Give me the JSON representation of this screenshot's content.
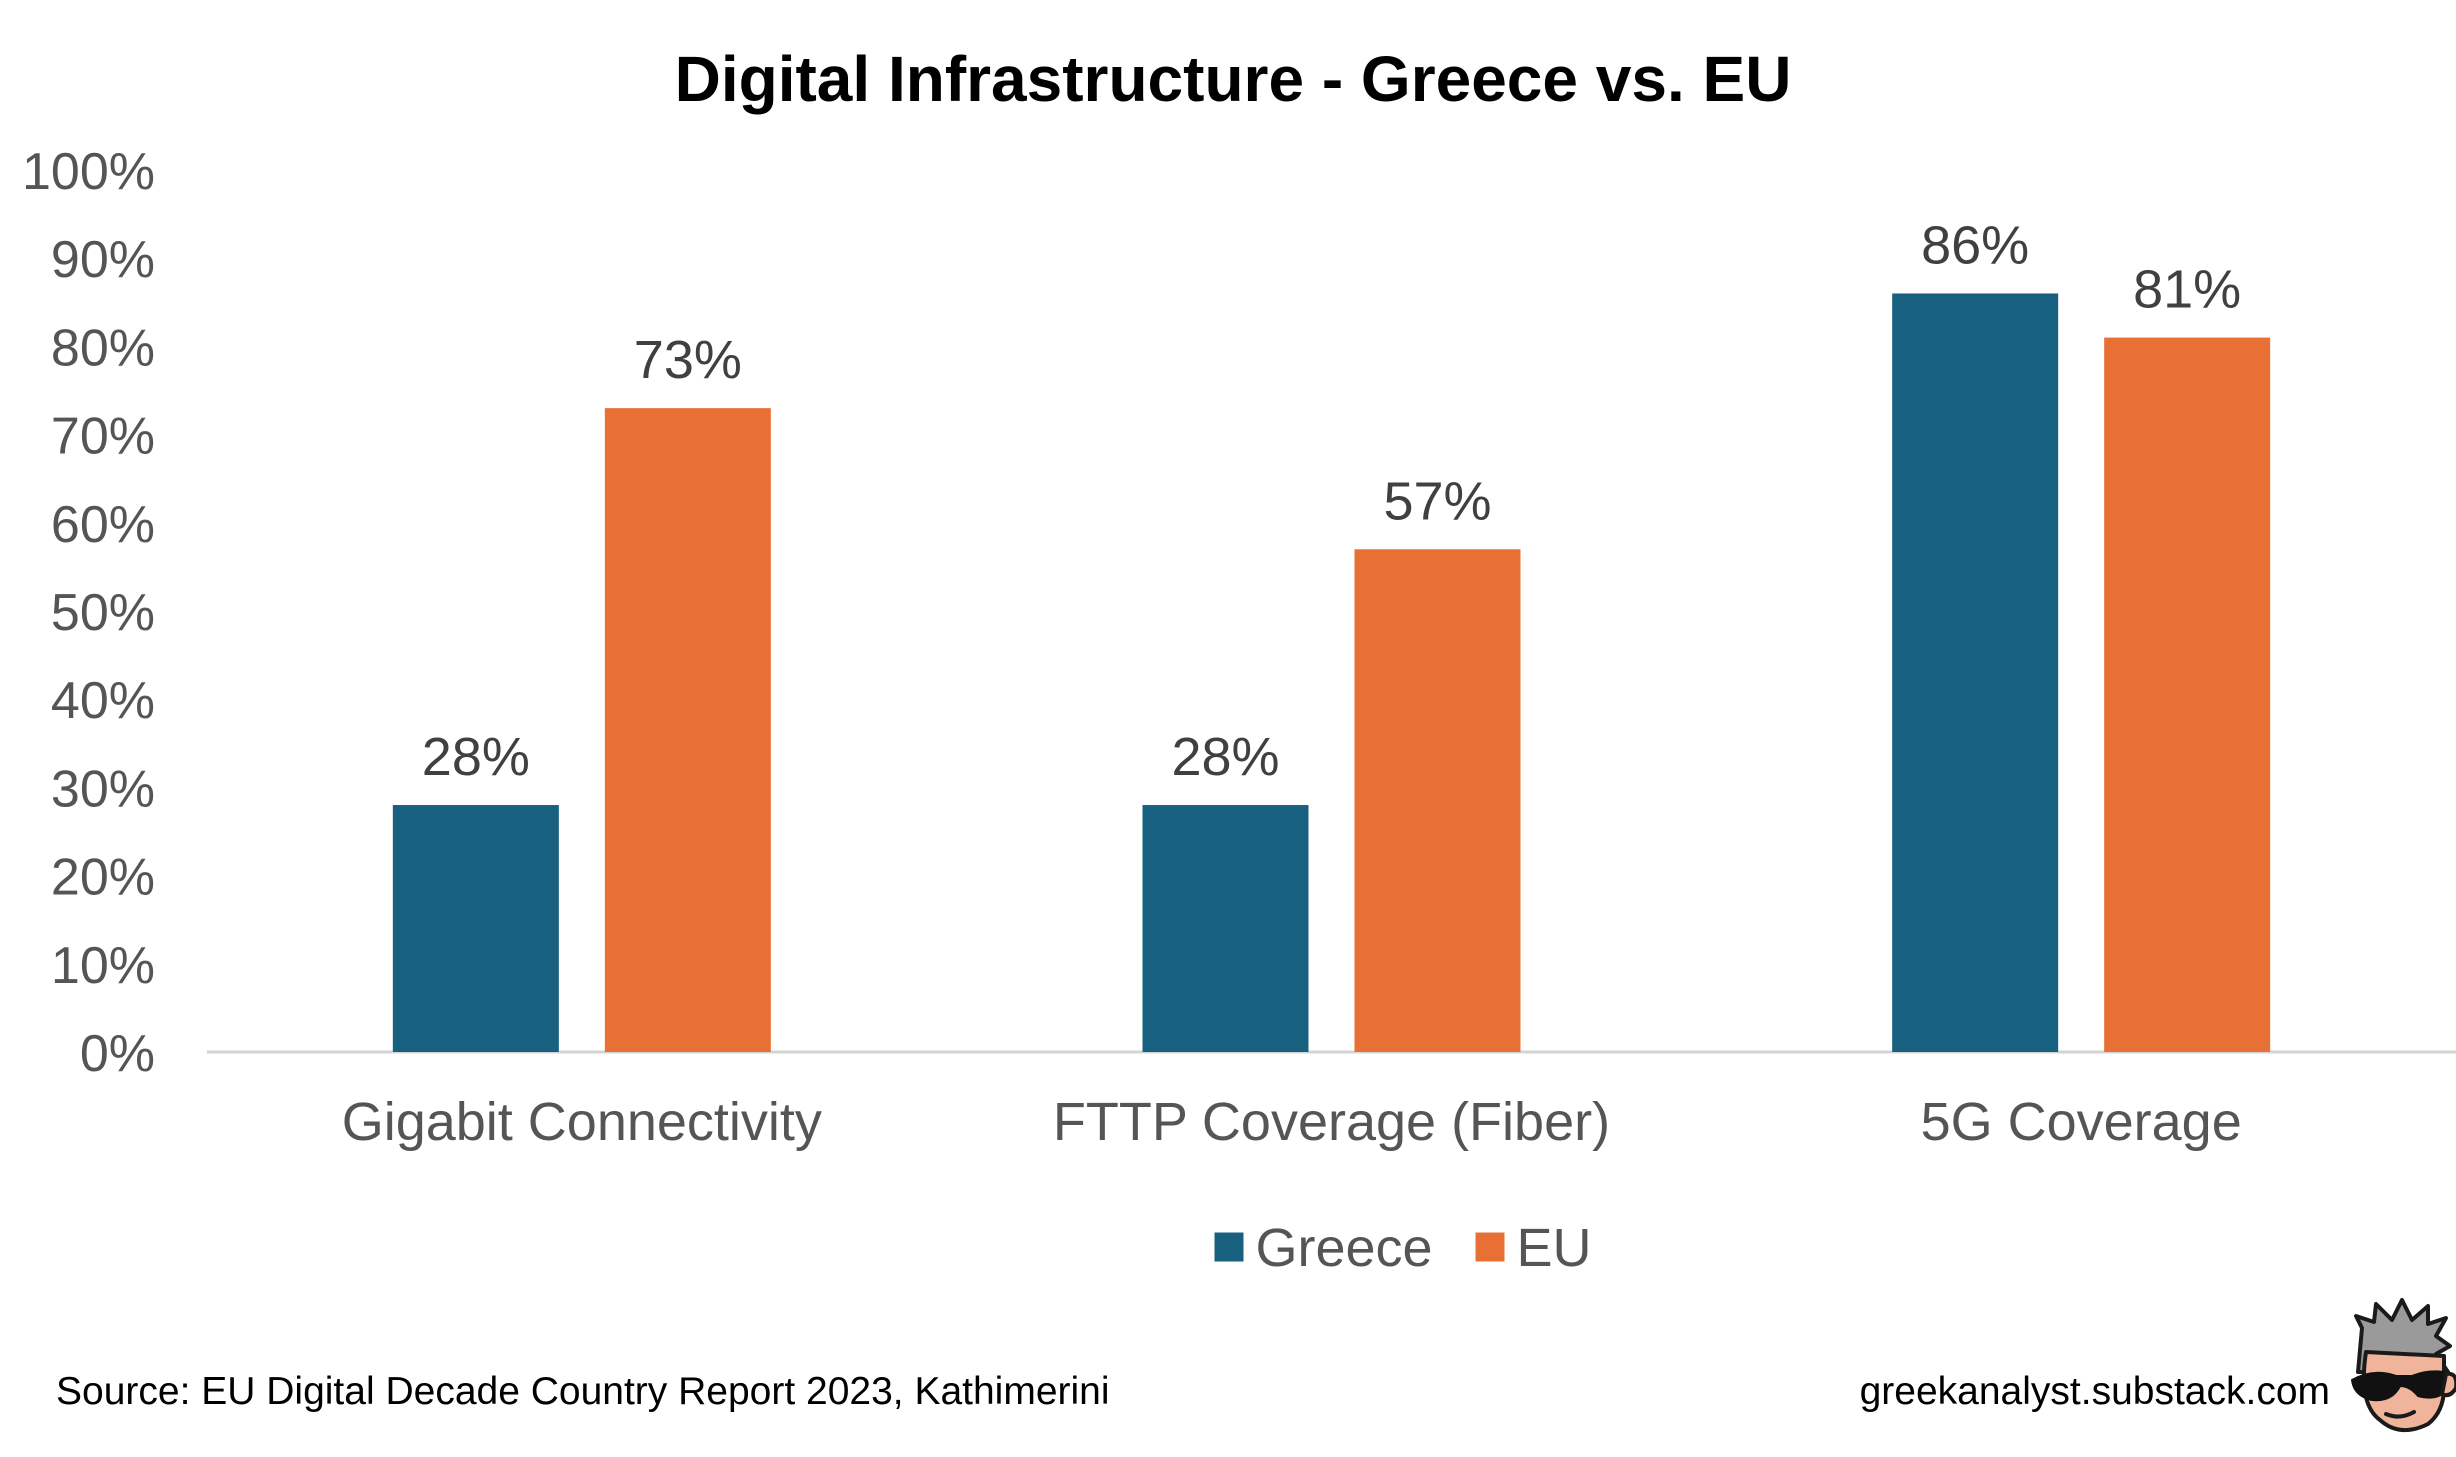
{
  "chart_data": {
    "type": "bar",
    "title": "Digital Infrastructure - Greece vs. EU",
    "categories": [
      "Gigabit Connectivity",
      "FTTP Coverage (Fiber)",
      "5G Coverage"
    ],
    "series": [
      {
        "name": "Greece",
        "color": "#17607f",
        "values": [
          28,
          28,
          86
        ]
      },
      {
        "name": "EU",
        "color": "#e87035",
        "values": [
          73,
          57,
          81
        ]
      }
    ],
    "value_suffix": "%",
    "ylim": [
      0,
      100
    ],
    "yticks": [
      "0%",
      "10%",
      "20%",
      "30%",
      "40%",
      "50%",
      "60%",
      "70%",
      "80%",
      "90%",
      "100%"
    ],
    "grid": false,
    "legend_position": "bottom",
    "xlabel": "",
    "ylabel": ""
  },
  "footer": {
    "source": "Source: EU Digital Decade Country Report 2023, Kathimerini",
    "site": "greekanalyst.substack.com"
  },
  "logo": {
    "icon": "sunglasses-mascot-icon"
  }
}
